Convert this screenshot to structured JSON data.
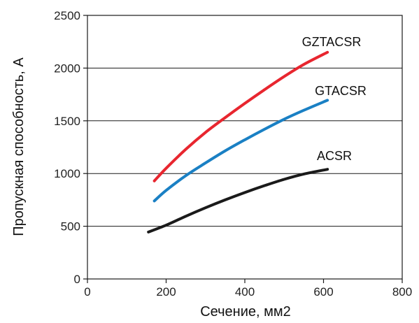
{
  "chart_data": {
    "type": "line",
    "title": "",
    "xlabel": "Сечение, мм2",
    "ylabel": "Пропускная способность, А",
    "xlim": [
      0,
      800
    ],
    "ylim": [
      0,
      2500
    ],
    "xticks": [
      0,
      200,
      400,
      600,
      800
    ],
    "yticks": [
      0,
      500,
      1000,
      1500,
      2000,
      2500
    ],
    "xtick_labels": [
      "0",
      "200",
      "400",
      "600",
      "800"
    ],
    "ytick_labels": [
      "0",
      "500",
      "1000",
      "1500",
      "2000",
      "2500"
    ],
    "grid": "horizontal",
    "legend": "direct labels at line ends",
    "series": [
      {
        "name": "GZTACSR",
        "color": "#e8262f",
        "x": [
          170,
          200,
          250,
          300,
          350,
          400,
          450,
          500,
          550,
          610
        ],
        "y": [
          930,
          1050,
          1230,
          1390,
          1530,
          1665,
          1795,
          1920,
          2035,
          2150
        ]
      },
      {
        "name": "GTACSR",
        "color": "#1a80c4",
        "x": [
          170,
          200,
          250,
          300,
          350,
          400,
          450,
          500,
          550,
          610
        ],
        "y": [
          740,
          840,
          980,
          1100,
          1215,
          1320,
          1420,
          1515,
          1600,
          1695
        ]
      },
      {
        "name": "ACSR",
        "color": "#1a1a1a",
        "x": [
          155,
          200,
          250,
          300,
          350,
          400,
          450,
          500,
          550,
          610
        ],
        "y": [
          445,
          510,
          595,
          675,
          750,
          820,
          885,
          945,
          995,
          1040
        ]
      }
    ]
  }
}
